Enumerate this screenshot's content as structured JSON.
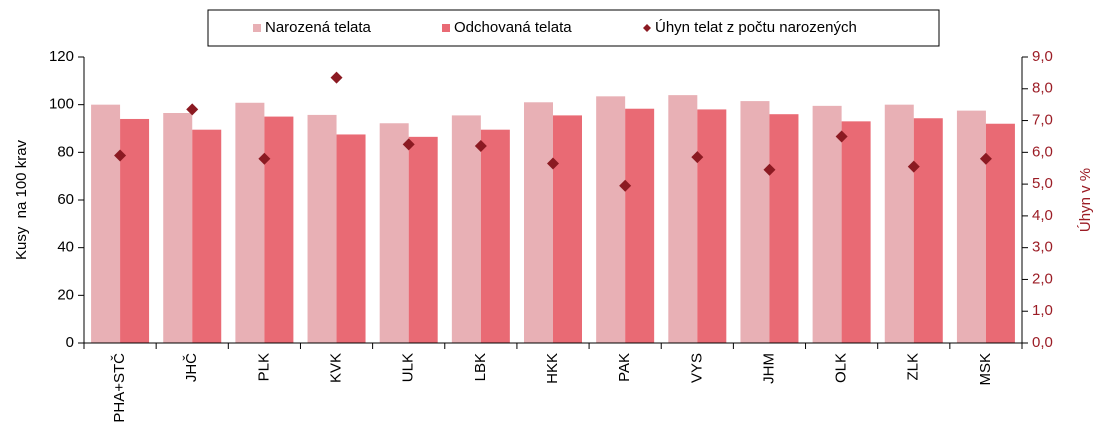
{
  "chart_data": {
    "type": "bar",
    "categories": [
      "PHA+STČ",
      "JHČ",
      "PLK",
      "KVK",
      "ULK",
      "LBK",
      "HKK",
      "PAK",
      "VYS",
      "JHM",
      "OLK",
      "ZLK",
      "MSK"
    ],
    "series": [
      {
        "name": "Narozená telata",
        "color": "#e8b0b5",
        "values": [
          100,
          96.5,
          100.8,
          95.7,
          92.2,
          95.5,
          101,
          103.5,
          104,
          101.5,
          99.5,
          100,
          97.5
        ]
      },
      {
        "name": "Odchovaná telata",
        "color": "#e96a74",
        "values": [
          94,
          89.5,
          95,
          87.5,
          86.5,
          89.5,
          95.5,
          98.3,
          98,
          96,
          93,
          94.3,
          92
        ]
      },
      {
        "name": "Úhyn telat z počtu narozených",
        "color": "#8b1a22",
        "axis": "y2",
        "values": [
          5.9,
          7.35,
          5.8,
          8.35,
          6.25,
          6.2,
          5.65,
          4.95,
          5.85,
          5.45,
          6.5,
          5.55,
          5.8
        ]
      }
    ],
    "ylabel": "Kusy  na 100 krav",
    "y2label": "Úhyn v %",
    "ylim": [
      0,
      120
    ],
    "yticks": [
      0,
      20,
      40,
      60,
      80,
      100,
      120
    ],
    "y2lim": [
      0,
      9
    ],
    "y2ticks": [
      {
        "value": 0,
        "label": "0,0"
      },
      {
        "value": 1,
        "label": "1,0"
      },
      {
        "value": 2,
        "label": "2,0"
      },
      {
        "value": 3,
        "label": "3,0"
      },
      {
        "value": 4,
        "label": "4,0"
      },
      {
        "value": 5,
        "label": "5,0"
      },
      {
        "value": 6,
        "label": "6,0"
      },
      {
        "value": 7,
        "label": "7,0"
      },
      {
        "value": 8,
        "label": "8,0"
      },
      {
        "value": 9,
        "label": "9,0"
      }
    ],
    "legend": "top"
  }
}
